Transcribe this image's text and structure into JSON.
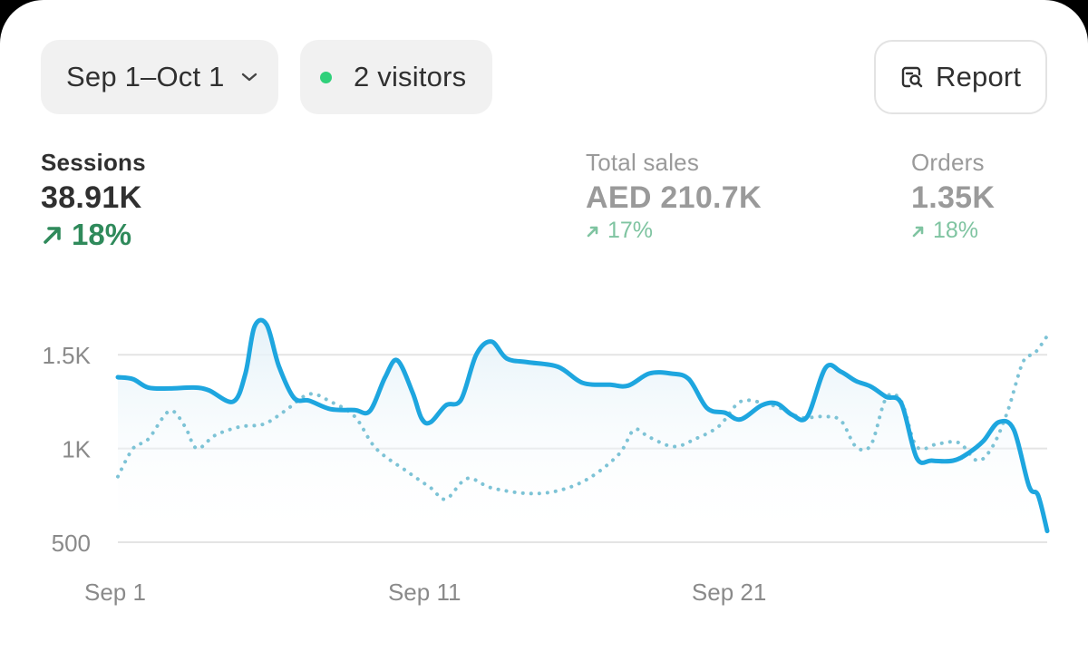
{
  "toolbar": {
    "date_range": "Sep 1–Oct 1",
    "visitors": "2 visitors",
    "report_label": "Report",
    "live_color": "#2fd07a"
  },
  "metrics": [
    {
      "label": "Sessions",
      "value": "38.91K",
      "delta": "18%",
      "selected": true
    },
    {
      "label": "Total sales",
      "value": "AED 210.7K",
      "delta": "17%",
      "selected": false
    },
    {
      "label": "Orders",
      "value": "1.35K",
      "delta": "18%",
      "selected": false
    }
  ],
  "chart_data": {
    "type": "line",
    "y_ticks": [
      {
        "value": 500,
        "label": "500"
      },
      {
        "value": 1000,
        "label": "1K"
      },
      {
        "value": 1500,
        "label": "1.5K"
      }
    ],
    "x_ticks": [
      {
        "x": 1,
        "label": "Sep 1"
      },
      {
        "x": 11,
        "label": "Sep 11"
      },
      {
        "x": 21,
        "label": "Sep 21"
      }
    ],
    "xlim": [
      1,
      31.6
    ],
    "ylim": [
      500,
      2000
    ],
    "grid": true,
    "series": [
      {
        "style": "solid",
        "color": "#1ea6df",
        "points": [
          [
            1,
            1380
          ],
          [
            1.5,
            1370
          ],
          [
            2,
            1325
          ],
          [
            2.7,
            1320
          ],
          [
            3.5,
            1325
          ],
          [
            4,
            1310
          ],
          [
            4.8,
            1250
          ],
          [
            5.2,
            1400
          ],
          [
            5.5,
            1650
          ],
          [
            5.9,
            1660
          ],
          [
            6.3,
            1440
          ],
          [
            6.8,
            1270
          ],
          [
            7.3,
            1255
          ],
          [
            8,
            1210
          ],
          [
            8.8,
            1205
          ],
          [
            9.3,
            1200
          ],
          [
            9.8,
            1380
          ],
          [
            10.2,
            1470
          ],
          [
            10.7,
            1300
          ],
          [
            11,
            1160
          ],
          [
            11.3,
            1140
          ],
          [
            11.8,
            1230
          ],
          [
            12.3,
            1260
          ],
          [
            12.8,
            1500
          ],
          [
            13.3,
            1570
          ],
          [
            13.8,
            1480
          ],
          [
            14.5,
            1460
          ],
          [
            15.5,
            1435
          ],
          [
            16.3,
            1350
          ],
          [
            17.2,
            1340
          ],
          [
            17.8,
            1335
          ],
          [
            18.5,
            1400
          ],
          [
            19.2,
            1400
          ],
          [
            19.8,
            1370
          ],
          [
            20.4,
            1215
          ],
          [
            21,
            1190
          ],
          [
            21.5,
            1155
          ],
          [
            22.2,
            1230
          ],
          [
            22.7,
            1240
          ],
          [
            23.2,
            1180
          ],
          [
            23.7,
            1170
          ],
          [
            24.3,
            1430
          ],
          [
            24.8,
            1410
          ],
          [
            25.3,
            1360
          ],
          [
            25.8,
            1330
          ],
          [
            26.3,
            1275
          ],
          [
            26.8,
            1240
          ],
          [
            27.3,
            950
          ],
          [
            27.8,
            935
          ],
          [
            28.5,
            935
          ],
          [
            29,
            975
          ],
          [
            29.5,
            1040
          ],
          [
            30,
            1140
          ],
          [
            30.5,
            1100
          ],
          [
            31,
            800
          ],
          [
            31.3,
            750
          ],
          [
            31.6,
            560
          ]
        ]
      },
      {
        "style": "dotted",
        "color": "#7dc3d6",
        "points": [
          [
            1,
            850
          ],
          [
            1.5,
            1000
          ],
          [
            2,
            1050
          ],
          [
            2.7,
            1200
          ],
          [
            3.2,
            1120
          ],
          [
            3.6,
            1000
          ],
          [
            4.2,
            1070
          ],
          [
            5,
            1115
          ],
          [
            5.8,
            1130
          ],
          [
            6.5,
            1200
          ],
          [
            7.3,
            1290
          ],
          [
            8,
            1250
          ],
          [
            8.8,
            1170
          ],
          [
            9.5,
            1000
          ],
          [
            10.5,
            880
          ],
          [
            11.3,
            790
          ],
          [
            11.8,
            730
          ],
          [
            12.5,
            840
          ],
          [
            13.3,
            790
          ],
          [
            14.5,
            760
          ],
          [
            15.5,
            775
          ],
          [
            16.5,
            840
          ],
          [
            17.5,
            970
          ],
          [
            18,
            1100
          ],
          [
            18.5,
            1060
          ],
          [
            19.3,
            1010
          ],
          [
            20,
            1050
          ],
          [
            20.8,
            1120
          ],
          [
            21.5,
            1250
          ],
          [
            22.3,
            1240
          ],
          [
            22.9,
            1210
          ],
          [
            23.5,
            1165
          ],
          [
            24.2,
            1170
          ],
          [
            24.8,
            1150
          ],
          [
            25.3,
            1010
          ],
          [
            25.8,
            1020
          ],
          [
            26.3,
            1270
          ],
          [
            26.8,
            1250
          ],
          [
            27.3,
            1010
          ],
          [
            28,
            1025
          ],
          [
            28.7,
            1030
          ],
          [
            29.3,
            935
          ],
          [
            29.8,
            1010
          ],
          [
            30.3,
            1200
          ],
          [
            30.8,
            1460
          ],
          [
            31.2,
            1510
          ],
          [
            31.6,
            1600
          ]
        ]
      }
    ]
  }
}
